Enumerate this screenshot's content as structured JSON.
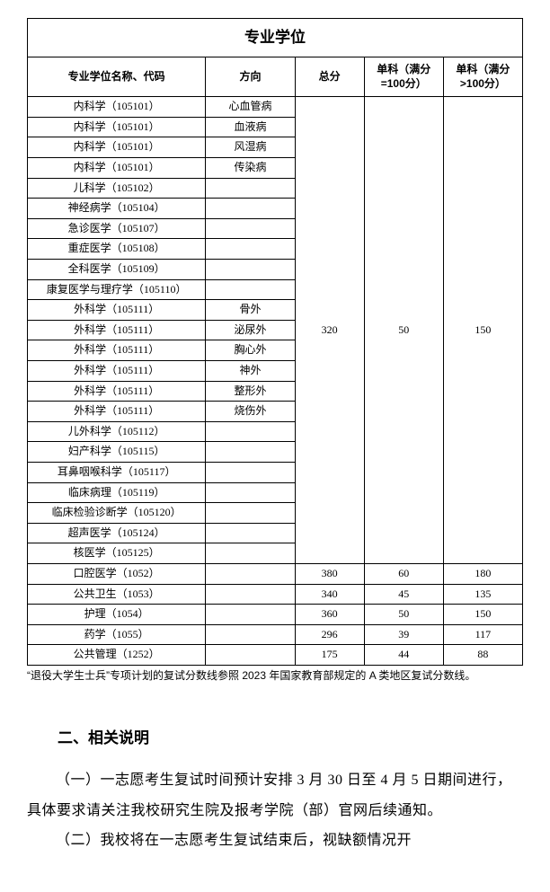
{
  "table": {
    "title": "专业学位",
    "columns": [
      "专业学位名称、代码",
      "方向",
      "总分",
      "单科（满分=100分）",
      "单科（满分>100分）"
    ],
    "col_widths": [
      "36%",
      "18%",
      "14%",
      "16%",
      "16%"
    ],
    "group1": {
      "zongfen": "320",
      "danke100": "50",
      "dankegt100": "150",
      "rows": [
        {
          "name": "内科学（105101）",
          "dir": "心血管病"
        },
        {
          "name": "内科学（105101）",
          "dir": "血液病"
        },
        {
          "name": "内科学（105101）",
          "dir": "风湿病"
        },
        {
          "name": "内科学（105101）",
          "dir": "传染病"
        },
        {
          "name": "儿科学（105102）",
          "dir": ""
        },
        {
          "name": "神经病学（105104）",
          "dir": ""
        },
        {
          "name": "急诊医学（105107）",
          "dir": ""
        },
        {
          "name": "重症医学（105108）",
          "dir": ""
        },
        {
          "name": "全科医学（105109）",
          "dir": ""
        },
        {
          "name": "康复医学与理疗学（105110）",
          "dir": ""
        },
        {
          "name": "外科学（105111）",
          "dir": "骨外"
        },
        {
          "name": "外科学（105111）",
          "dir": "泌尿外"
        },
        {
          "name": "外科学（105111）",
          "dir": "胸心外"
        },
        {
          "name": "外科学（105111）",
          "dir": "神外"
        },
        {
          "name": "外科学（105111）",
          "dir": "整形外"
        },
        {
          "name": "外科学（105111）",
          "dir": "烧伤外"
        },
        {
          "name": "儿外科学（105112）",
          "dir": ""
        },
        {
          "name": "妇产科学（105115）",
          "dir": ""
        },
        {
          "name": "耳鼻咽喉科学（105117）",
          "dir": ""
        },
        {
          "name": "临床病理（105119）",
          "dir": ""
        },
        {
          "name": "临床检验诊断学（105120）",
          "dir": ""
        },
        {
          "name": "超声医学（105124）",
          "dir": ""
        },
        {
          "name": "核医学（105125）",
          "dir": ""
        }
      ]
    },
    "rows_after": [
      {
        "name": "口腔医学（1052）",
        "dir": "",
        "zf": "380",
        "d1": "60",
        "d2": "180"
      },
      {
        "name": "公共卫生（1053）",
        "dir": "",
        "zf": "340",
        "d1": "45",
        "d2": "135"
      },
      {
        "name": "护理（1054）",
        "dir": "",
        "zf": "360",
        "d1": "50",
        "d2": "150"
      },
      {
        "name": "药学（1055）",
        "dir": "",
        "zf": "296",
        "d1": "39",
        "d2": "117"
      },
      {
        "name": "公共管理（1252）",
        "dir": "",
        "zf": "175",
        "d1": "44",
        "d2": "88"
      }
    ]
  },
  "footnote": "“退役大学生士兵”专项计划的复试分数线参照 2023 年国家教育部规定的 A 类地区复试分数线。",
  "section_heading": "二、相关说明",
  "paragraphs": [
    "（一）一志愿考生复试时间预计安排 3 月 30 日至 4 月 5 日期间进行，具体要求请关注我校研究生院及报考学院（部）官网后续通知。",
    "（二）我校将在一志愿考生复试结束后，视缺额情况开"
  ]
}
